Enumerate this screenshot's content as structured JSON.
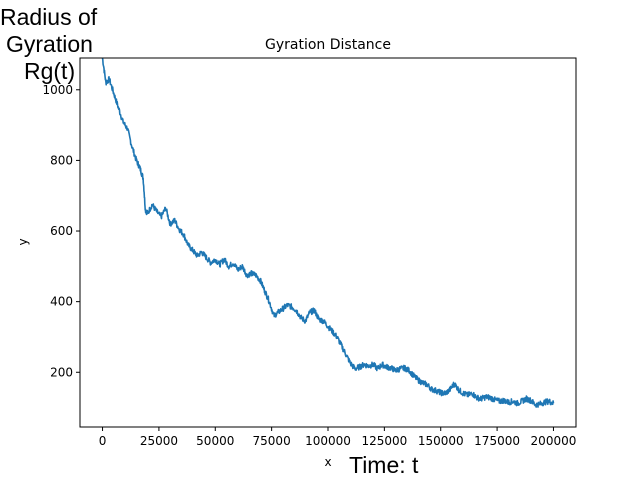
{
  "chart_data": {
    "type": "line",
    "title": "Gyration Distance",
    "xlabel": "x",
    "ylabel": "y",
    "xlim": [
      -10000,
      210000
    ],
    "ylim": [
      45,
      1090
    ],
    "xticks": [
      0,
      25000,
      50000,
      75000,
      100000,
      125000,
      150000,
      175000,
      200000
    ],
    "yticks": [
      200,
      400,
      600,
      800,
      1000
    ],
    "xtick_labels": [
      "0",
      "25000",
      "50000",
      "75000",
      "100000",
      "125000",
      "150000",
      "175000",
      "200000"
    ],
    "ytick_labels": [
      "200",
      "400",
      "600",
      "800",
      "1000"
    ],
    "grid": false,
    "series": [
      {
        "color": "#1f77b4",
        "x": [
          0,
          1500,
          3000,
          5000,
          7000,
          9000,
          11000,
          13000,
          15000,
          16500,
          18000,
          19000,
          20000,
          22000,
          24000,
          26000,
          28000,
          30000,
          32000,
          34000,
          36000,
          38000,
          40000,
          42000,
          44000,
          46000,
          48000,
          50000,
          52000,
          54000,
          56000,
          58000,
          60000,
          62000,
          64000,
          66000,
          68000,
          70000,
          72000,
          74000,
          76000,
          78000,
          80000,
          82000,
          84000,
          86000,
          88000,
          90000,
          92000,
          94000,
          96000,
          98000,
          100000,
          102000,
          104000,
          106000,
          108000,
          110000,
          112000,
          114000,
          116000,
          118000,
          120000,
          122000,
          124000,
          126000,
          128000,
          130000,
          132000,
          134000,
          136000,
          138000,
          140000,
          142000,
          144000,
          146000,
          148000,
          150000,
          152000,
          154000,
          156000,
          158000,
          160000,
          162000,
          164000,
          166000,
          168000,
          170000,
          172000,
          174000,
          176000,
          178000,
          180000,
          182000,
          184000,
          186000,
          188000,
          190000,
          192000,
          194000,
          196000,
          198000,
          200000
        ],
        "values": [
          1090,
          1020,
          1030,
          990,
          950,
          910,
          890,
          840,
          800,
          780,
          750,
          660,
          650,
          675,
          655,
          640,
          665,
          620,
          630,
          605,
          590,
          560,
          545,
          530,
          540,
          525,
          510,
          520,
          505,
          520,
          500,
          510,
          490,
          500,
          475,
          480,
          475,
          460,
          430,
          400,
          360,
          370,
          380,
          390,
          385,
          375,
          355,
          345,
          370,
          375,
          350,
          345,
          330,
          315,
          300,
          275,
          250,
          225,
          210,
          215,
          222,
          218,
          222,
          210,
          222,
          215,
          212,
          205,
          210,
          212,
          205,
          190,
          178,
          170,
          165,
          152,
          148,
          142,
          140,
          150,
          168,
          150,
          140,
          135,
          140,
          128,
          125,
          130,
          128,
          122,
          118,
          120,
          115,
          118,
          112,
          118,
          125,
          120,
          108,
          110,
          115,
          118,
          112
        ]
      }
    ]
  },
  "annotations": {
    "rg_lines": [
      "Radius of",
      "Gyration",
      "Rg(t)"
    ],
    "time_label": "Time: t"
  }
}
